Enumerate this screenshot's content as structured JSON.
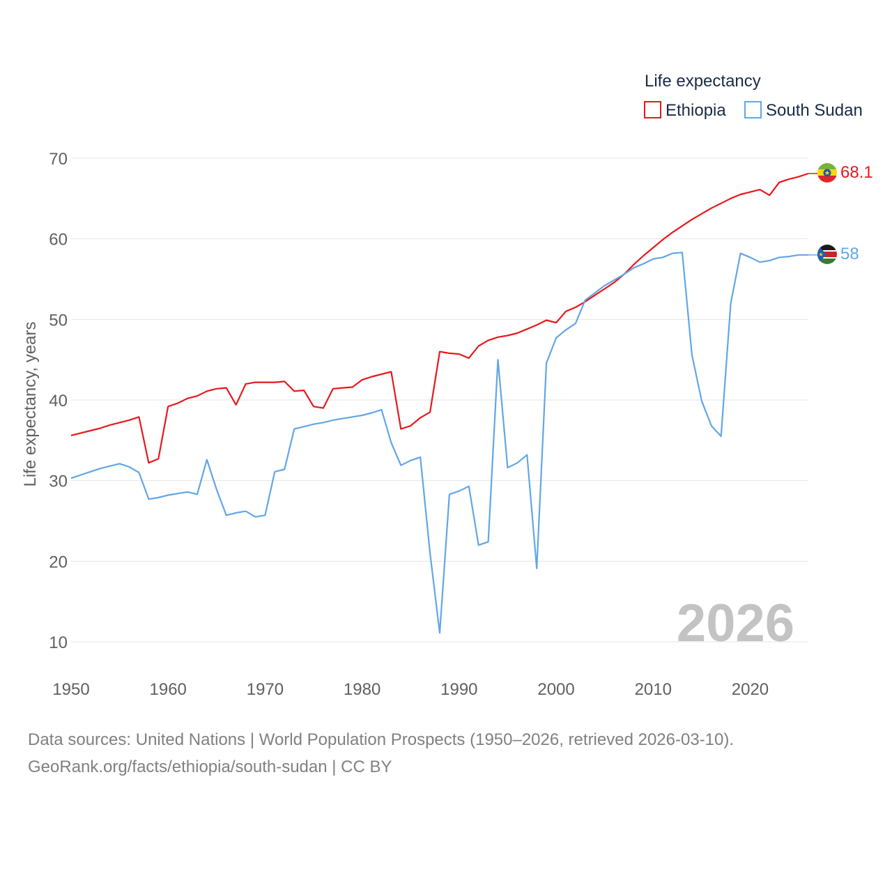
{
  "chart_data": {
    "type": "line",
    "title": "",
    "xlabel": "",
    "ylabel": "Life expectancy, years",
    "xlim": [
      1950,
      2026
    ],
    "ylim": [
      10,
      70
    ],
    "x_ticks": [
      1950,
      1960,
      1970,
      1980,
      1990,
      2000,
      2010,
      2020
    ],
    "y_ticks": [
      10,
      20,
      30,
      40,
      50,
      60,
      70
    ],
    "year_watermark": "2026",
    "legend": {
      "title": "Life expectancy",
      "position": "top-right"
    },
    "x": [
      1950,
      1951,
      1952,
      1953,
      1954,
      1955,
      1956,
      1957,
      1958,
      1959,
      1960,
      1961,
      1962,
      1963,
      1964,
      1965,
      1966,
      1967,
      1968,
      1969,
      1970,
      1971,
      1972,
      1973,
      1974,
      1975,
      1976,
      1977,
      1978,
      1979,
      1980,
      1981,
      1982,
      1983,
      1984,
      1985,
      1986,
      1987,
      1988,
      1989,
      1990,
      1991,
      1992,
      1993,
      1994,
      1995,
      1996,
      1997,
      1998,
      1999,
      2000,
      2001,
      2002,
      2003,
      2004,
      2005,
      2006,
      2007,
      2008,
      2009,
      2010,
      2011,
      2012,
      2013,
      2014,
      2015,
      2016,
      2017,
      2018,
      2019,
      2020,
      2021,
      2022,
      2023,
      2024,
      2025,
      2026
    ],
    "series": [
      {
        "name": "Ethiopia",
        "color": "#e8171c",
        "end_label": "68.1",
        "flag": "ethiopia-flag",
        "values": [
          35.6,
          35.9,
          36.2,
          36.5,
          36.9,
          37.2,
          37.5,
          37.9,
          32.2,
          32.7,
          39.2,
          39.6,
          40.2,
          40.5,
          41.1,
          41.4,
          41.5,
          39.4,
          42.0,
          42.2,
          42.2,
          42.2,
          42.3,
          41.1,
          41.2,
          39.2,
          39.0,
          41.4,
          41.5,
          41.6,
          42.5,
          42.9,
          43.2,
          43.5,
          36.4,
          36.8,
          37.8,
          38.5,
          46.0,
          45.8,
          45.7,
          45.2,
          46.7,
          47.4,
          47.8,
          48.0,
          48.3,
          48.8,
          49.3,
          49.9,
          49.6,
          51.0,
          51.5,
          52.2,
          53.0,
          53.8,
          54.6,
          55.6,
          56.8,
          57.9,
          58.9,
          59.9,
          60.8,
          61.6,
          62.4,
          63.1,
          63.8,
          64.4,
          65.0,
          65.5,
          65.8,
          66.1,
          65.4,
          67.0,
          67.4,
          67.7,
          68.1
        ]
      },
      {
        "name": "South Sudan",
        "color": "#62a6e5",
        "end_label": "58",
        "flag": "south-sudan-flag",
        "values": [
          30.3,
          30.7,
          31.1,
          31.5,
          31.8,
          32.1,
          31.7,
          31.0,
          27.7,
          27.9,
          28.2,
          28.4,
          28.6,
          28.3,
          32.6,
          28.9,
          25.7,
          26.0,
          26.2,
          25.5,
          25.7,
          31.1,
          31.4,
          36.4,
          36.7,
          37.0,
          37.2,
          37.5,
          37.7,
          37.9,
          38.1,
          38.4,
          38.8,
          34.7,
          31.9,
          32.5,
          32.9,
          21.0,
          11.1,
          28.3,
          28.7,
          29.3,
          22.0,
          22.4,
          45.0,
          31.6,
          32.2,
          33.2,
          19.1,
          44.6,
          47.7,
          48.7,
          49.5,
          52.4,
          53.3,
          54.2,
          54.9,
          55.6,
          56.4,
          56.9,
          57.5,
          57.7,
          58.2,
          58.3,
          45.6,
          39.9,
          36.8,
          35.5,
          52.0,
          58.2,
          57.7,
          57.1,
          57.3,
          57.7,
          57.8,
          58.0,
          58.0
        ]
      }
    ]
  },
  "footer": {
    "line1": "Data sources: United Nations | World Population Prospects (1950–2026, retrieved 2026-03-10).",
    "line2": "GeoRank.org/facts/ethiopia/south-sudan | CC BY"
  }
}
